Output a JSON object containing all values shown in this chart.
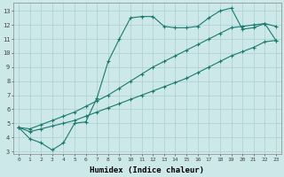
{
  "xlabel": "Humidex (Indice chaleur)",
  "bg_color": "#cce8e8",
  "line_color": "#1a7a6e",
  "grid_color": "#aacfcf",
  "xlim": [
    -0.5,
    23.5
  ],
  "ylim": [
    2.8,
    13.6
  ],
  "yticks": [
    3,
    4,
    5,
    6,
    7,
    8,
    9,
    10,
    11,
    12,
    13
  ],
  "xticks": [
    0,
    1,
    2,
    3,
    4,
    5,
    6,
    7,
    8,
    9,
    10,
    11,
    12,
    13,
    14,
    15,
    16,
    17,
    18,
    19,
    20,
    21,
    22,
    23
  ],
  "line1_x": [
    0,
    1,
    2,
    3,
    4,
    5,
    6,
    7,
    8,
    9,
    10,
    11,
    12,
    13,
    14,
    15,
    16,
    17,
    18,
    19,
    20,
    21,
    22,
    23
  ],
  "line1_y": [
    4.7,
    3.9,
    3.6,
    3.1,
    3.6,
    5.0,
    5.1,
    6.8,
    9.4,
    11.0,
    12.5,
    12.6,
    12.6,
    11.9,
    11.8,
    11.8,
    11.9,
    12.5,
    13.0,
    13.2,
    11.7,
    11.8,
    12.1,
    10.9
  ],
  "line2_x": [
    0,
    1,
    2,
    3,
    4,
    5,
    6,
    7,
    8,
    9,
    10,
    11,
    12,
    13,
    14,
    15,
    16,
    17,
    18,
    19,
    20,
    21,
    22,
    23
  ],
  "line2_y": [
    4.7,
    4.6,
    4.9,
    5.2,
    5.5,
    5.8,
    6.2,
    6.6,
    7.0,
    7.5,
    8.0,
    8.5,
    9.0,
    9.4,
    9.8,
    10.2,
    10.6,
    11.0,
    11.4,
    11.8,
    11.9,
    12.0,
    12.1,
    11.9
  ],
  "line3_x": [
    0,
    1,
    2,
    3,
    4,
    5,
    6,
    7,
    8,
    9,
    10,
    11,
    12,
    13,
    14,
    15,
    16,
    17,
    18,
    19,
    20,
    21,
    22,
    23
  ],
  "line3_y": [
    4.7,
    4.4,
    4.6,
    4.8,
    5.0,
    5.2,
    5.5,
    5.8,
    6.1,
    6.4,
    6.7,
    7.0,
    7.3,
    7.6,
    7.9,
    8.2,
    8.6,
    9.0,
    9.4,
    9.8,
    10.1,
    10.4,
    10.8,
    10.9
  ],
  "marker": "+",
  "figsize": [
    3.2,
    2.0
  ],
  "dpi": 100
}
